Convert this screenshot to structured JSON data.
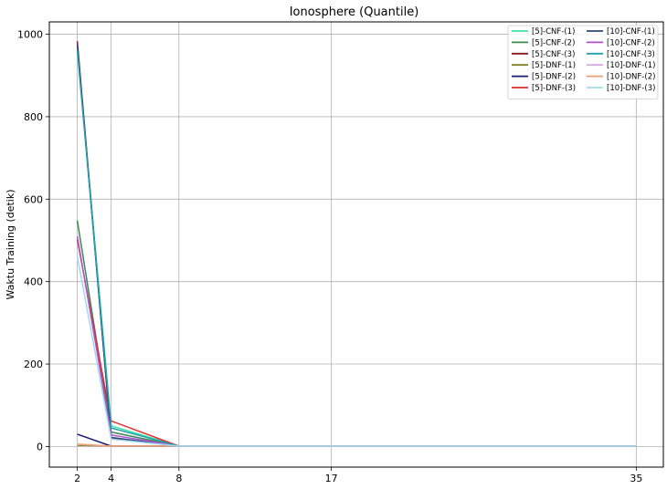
{
  "chart_data": {
    "type": "line",
    "title": "Ionosphere (Quantile)",
    "xlabel": "",
    "ylabel": "Waktu Training (detik)",
    "x": [
      2,
      4,
      8,
      17,
      35
    ],
    "xticks": [
      2,
      4,
      8,
      17,
      35
    ],
    "yticks": [
      0,
      200,
      400,
      600,
      800,
      1000
    ],
    "ylim": [
      -50,
      1030
    ],
    "xlim": [
      0.35,
      36.6
    ],
    "grid": true,
    "legend_position": "top-right",
    "legend_columns": 2,
    "series": [
      {
        "name": "[5]-CNF-(1)",
        "color": "#40e0a0",
        "values": [
          970,
          50,
          1,
          1,
          1
        ]
      },
      {
        "name": "[5]-CNF-(2)",
        "color": "#3a8a50",
        "values": [
          548,
          35,
          1,
          1,
          1
        ]
      },
      {
        "name": "[5]-CNF-(3)",
        "color": "#8b1a1a",
        "values": [
          983,
          20,
          1,
          1,
          1
        ]
      },
      {
        "name": "[5]-DNF-(1)",
        "color": "#808020",
        "values": [
          3,
          1,
          1,
          1,
          1
        ]
      },
      {
        "name": "[5]-DNF-(2)",
        "color": "#1a1a6e",
        "values": [
          30,
          1,
          1,
          1,
          1
        ]
      },
      {
        "name": "[5]-DNF-(3)",
        "color": "#e03030",
        "values": [
          502,
          62,
          1,
          1,
          1
        ]
      },
      {
        "name": "[10]-CNF-(1)",
        "color": "#2a4a80",
        "values": [
          975,
          22,
          1,
          1,
          1
        ]
      },
      {
        "name": "[10]-CNF-(2)",
        "color": "#b050d0",
        "values": [
          510,
          28,
          1,
          1,
          1
        ]
      },
      {
        "name": "[10]-CNF-(3)",
        "color": "#20a0b0",
        "values": [
          960,
          45,
          1,
          1,
          1
        ]
      },
      {
        "name": "[10]-DNF-(1)",
        "color": "#d8a8e0",
        "values": [
          5,
          1,
          1,
          1,
          1
        ]
      },
      {
        "name": "[10]-DNF-(2)",
        "color": "#f0a070",
        "values": [
          6,
          1,
          1,
          1,
          1
        ]
      },
      {
        "name": "[10]-DNF-(3)",
        "color": "#a0d8f0",
        "values": [
          462,
          18,
          1,
          1,
          1
        ]
      }
    ]
  }
}
